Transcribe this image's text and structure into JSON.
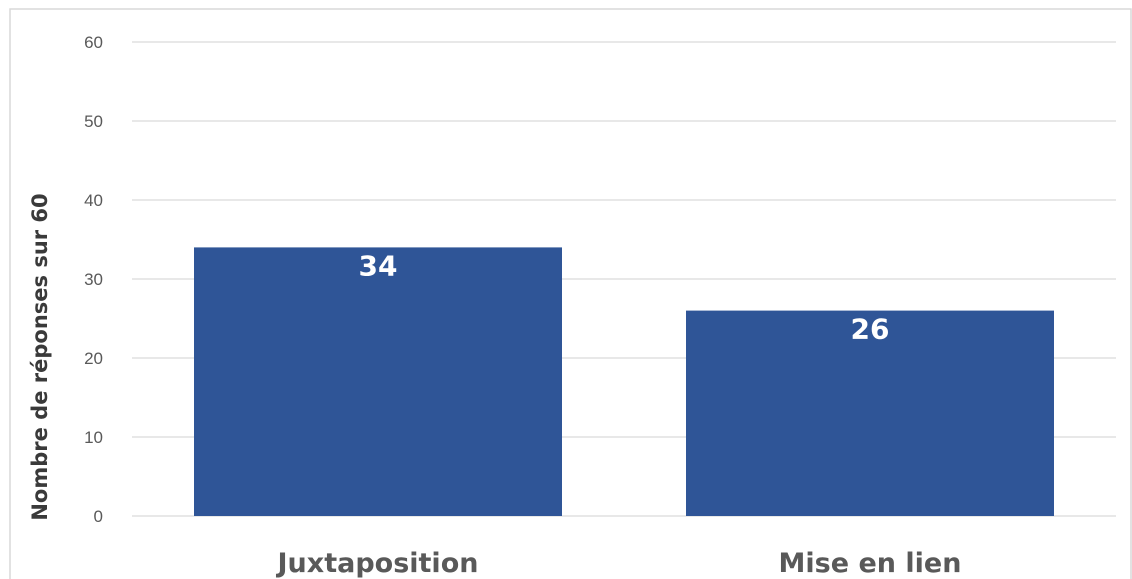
{
  "chart_data": {
    "type": "bar",
    "categories": [
      "Juxtaposition",
      "Mise en lien"
    ],
    "values": [
      34,
      26
    ],
    "data_labels": [
      "34",
      "26"
    ],
    "title": "",
    "xlabel": "",
    "ylabel": "Nombre de réponses sur 60",
    "ylim": [
      0,
      60
    ],
    "yticks": [
      "0",
      "10",
      "20",
      "30",
      "40",
      "50",
      "60"
    ],
    "ytick_values": [
      0,
      10,
      20,
      30,
      40,
      50,
      60
    ],
    "grid": true,
    "legend": "none",
    "colors": {
      "bar": "#2F5597",
      "grid": "#D9D9D9",
      "frame": "#D9D9D9",
      "tick_text": "#595959",
      "data_label": "#FFFFFF"
    }
  }
}
